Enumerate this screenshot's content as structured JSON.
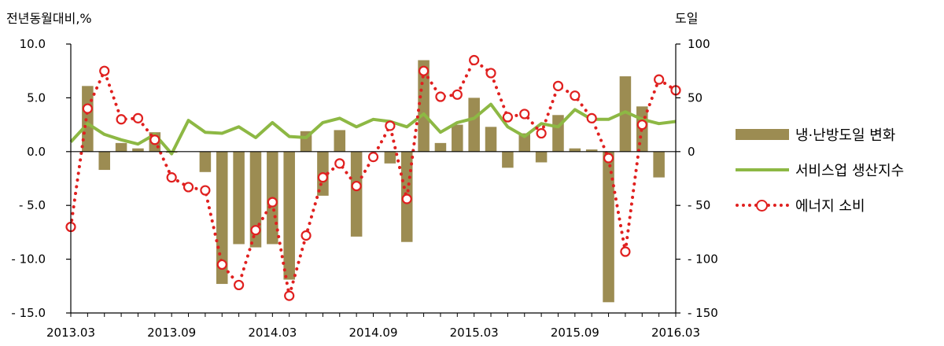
{
  "chart_data": {
    "type": "bar",
    "ylabel_left": "전년동월대비,%",
    "ylabel_right": "도일",
    "x": [
      "2013.03",
      "2013.04",
      "2013.05",
      "2013.06",
      "2013.07",
      "2013.08",
      "2013.09",
      "2013.10",
      "2013.11",
      "2013.12",
      "2014.01",
      "2014.02",
      "2014.03",
      "2014.04",
      "2014.05",
      "2014.06",
      "2014.07",
      "2014.08",
      "2014.09",
      "2014.10",
      "2014.11",
      "2014.12",
      "2015.01",
      "2015.02",
      "2015.03",
      "2015.04",
      "2015.05",
      "2015.06",
      "2015.07",
      "2015.08",
      "2015.09",
      "2015.10",
      "2015.11",
      "2015.12",
      "2016.01",
      "2016.02",
      "2016.03"
    ],
    "xticks": [
      "2013.03",
      "2013.09",
      "2014.03",
      "2014.09",
      "2015.03",
      "2015.09",
      "2016.03"
    ],
    "left_axis": {
      "ylim": [
        -15,
        10
      ],
      "ticks": [
        "10.0",
        "5.0",
        "0.0",
        "- 5.0",
        "- 10.0",
        "- 15.0"
      ],
      "tick_values": [
        10,
        5,
        0,
        -5,
        -10,
        -15
      ]
    },
    "right_axis": {
      "ylim": [
        -150,
        100
      ],
      "ticks": [
        "100",
        "50",
        "0",
        "- 50",
        "- 100",
        "- 150"
      ],
      "tick_values": [
        100,
        50,
        0,
        -50,
        -100,
        -150
      ]
    },
    "series": [
      {
        "name": "냉·난방도일 변화",
        "type": "bar",
        "axis": "left",
        "color": "#9c8c52",
        "values": [
          0,
          6.1,
          -1.7,
          0.8,
          0.3,
          1.8,
          -0.1,
          0,
          -1.9,
          -12.3,
          -8.6,
          -8.9,
          -8.6,
          -11.9,
          1.9,
          -4.1,
          2.0,
          -7.9,
          0,
          -1.1,
          -8.4,
          8.5,
          0.8,
          2.5,
          5.0,
          2.3,
          -1.5,
          1.7,
          -1.0,
          3.4,
          0.3,
          0.2,
          -14.0,
          7.0,
          4.2,
          -2.4,
          0
        ]
      },
      {
        "name": "서비스업 생산지수",
        "type": "line",
        "axis": "left",
        "color": "#8db844",
        "values": [
          0.9,
          2.6,
          1.6,
          1.1,
          0.7,
          1.6,
          -0.2,
          2.9,
          1.8,
          1.7,
          2.3,
          1.3,
          2.7,
          1.4,
          1.3,
          2.7,
          3.1,
          2.3,
          3.0,
          2.8,
          2.3,
          3.5,
          1.8,
          2.7,
          3.1,
          4.4,
          2.3,
          1.4,
          2.6,
          2.3,
          3.9,
          3.0,
          3.0,
          3.7,
          3.0,
          2.6,
          2.8
        ]
      },
      {
        "name": "에너지 소비",
        "type": "line",
        "axis": "right",
        "color": "#e0201f",
        "values": [
          -70,
          40,
          75,
          30,
          31,
          11,
          -24,
          -33,
          -36,
          -105,
          -124,
          -73,
          -47,
          -134,
          -78,
          -24,
          -11,
          -32,
          -5,
          24,
          -44,
          75,
          51,
          53,
          85,
          73,
          32,
          35,
          17,
          61,
          52,
          31,
          -6,
          -93,
          25,
          67,
          57
        ]
      }
    ],
    "grid": false,
    "legend": "right"
  }
}
